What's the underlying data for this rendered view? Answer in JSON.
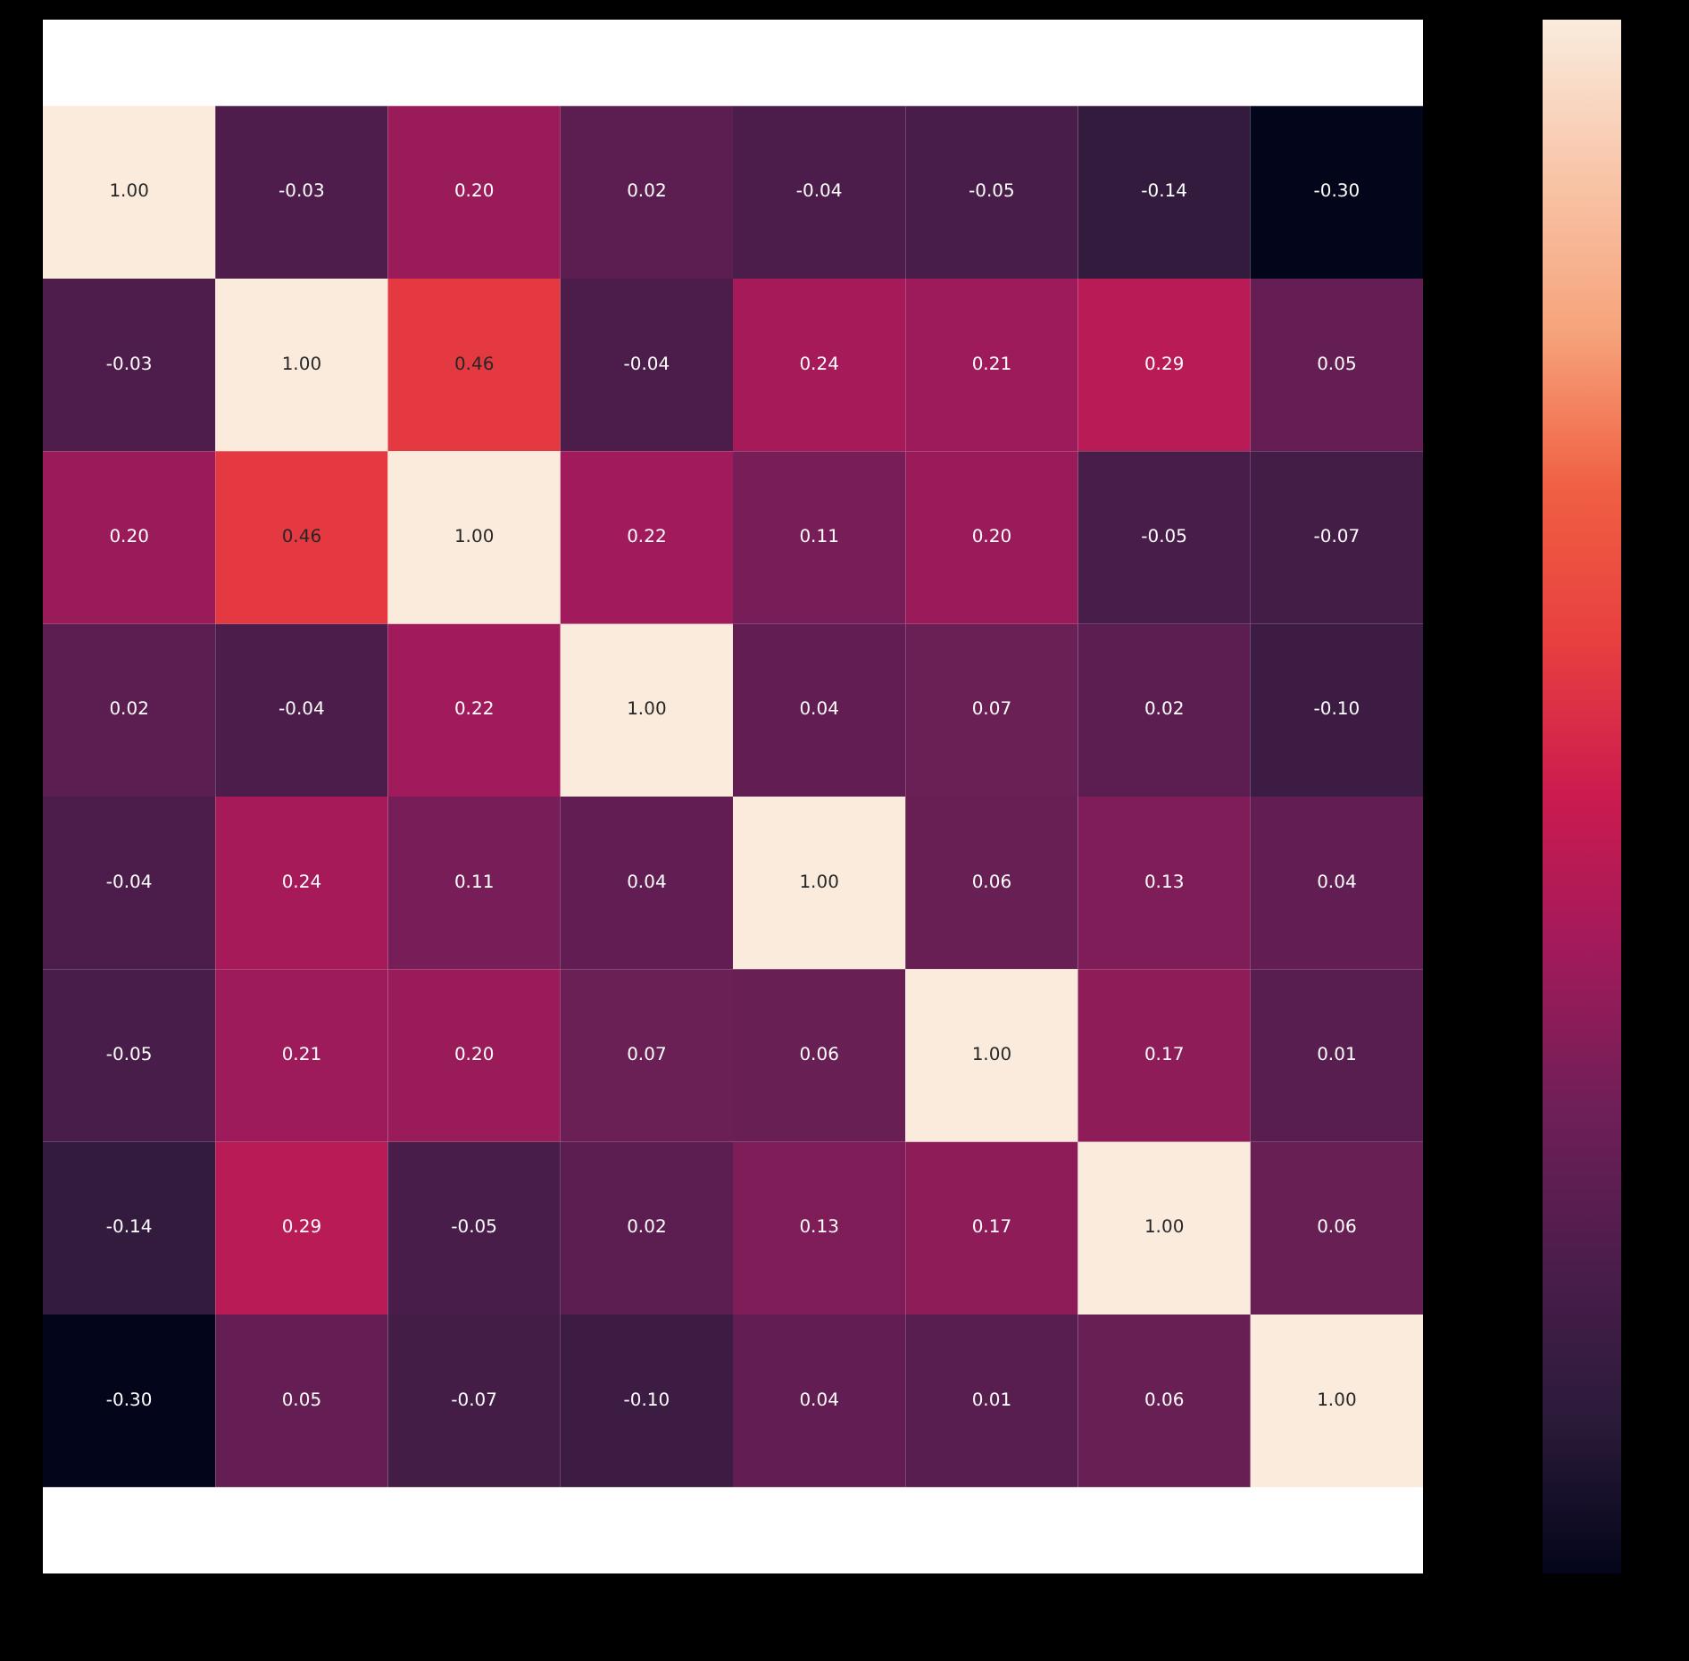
{
  "chart_data": {
    "type": "heatmap",
    "categories": [
      null,
      null,
      null,
      null,
      null,
      null,
      null,
      null
    ],
    "y_categories": [
      null,
      null,
      null,
      null,
      null,
      null,
      null,
      null
    ],
    "cells": [
      [
        1.0,
        -0.03,
        0.2,
        0.02,
        -0.04,
        -0.05,
        -0.14,
        -0.3
      ],
      [
        -0.03,
        1.0,
        0.46,
        -0.04,
        0.24,
        0.21,
        0.29,
        0.05
      ],
      [
        0.2,
        0.46,
        1.0,
        0.22,
        0.11,
        0.2,
        -0.05,
        -0.07
      ],
      [
        0.02,
        -0.04,
        0.22,
        1.0,
        0.04,
        0.07,
        0.02,
        -0.1
      ],
      [
        -0.04,
        0.24,
        0.11,
        0.04,
        1.0,
        0.06,
        0.13,
        0.04
      ],
      [
        -0.05,
        0.21,
        0.2,
        0.07,
        0.06,
        1.0,
        0.17,
        0.01
      ],
      [
        -0.14,
        0.29,
        -0.05,
        0.02,
        0.13,
        0.17,
        1.0,
        0.06
      ],
      [
        -0.3,
        0.05,
        -0.07,
        -0.1,
        0.04,
        0.01,
        0.06,
        1.0
      ]
    ],
    "cell_labels": [
      [
        "1.00",
        "-0.03",
        "0.20",
        "0.02",
        "-0.04",
        "-0.05",
        "-0.14",
        "-0.30"
      ],
      [
        "-0.03",
        "1.00",
        "0.46",
        "-0.04",
        "0.24",
        "0.21",
        "0.29",
        "0.05"
      ],
      [
        "0.20",
        "0.46",
        "1.00",
        "0.22",
        "0.11",
        "0.20",
        "-0.05",
        "-0.07"
      ],
      [
        "0.02",
        "-0.04",
        "0.22",
        "1.00",
        "0.04",
        "0.07",
        "0.02",
        "-0.10"
      ],
      [
        "-0.04",
        "0.24",
        "0.11",
        "0.04",
        "1.00",
        "0.06",
        "0.13",
        "0.04"
      ],
      [
        "-0.05",
        "0.21",
        "0.20",
        "0.07",
        "0.06",
        "1.00",
        "0.17",
        "0.01"
      ],
      [
        "-0.14",
        "0.29",
        "-0.05",
        "0.02",
        "0.13",
        "0.17",
        "1.00",
        "0.06"
      ],
      [
        "-0.30",
        "0.05",
        "-0.07",
        "-0.10",
        "0.04",
        "0.01",
        "0.06",
        "1.00"
      ]
    ]
  }
}
